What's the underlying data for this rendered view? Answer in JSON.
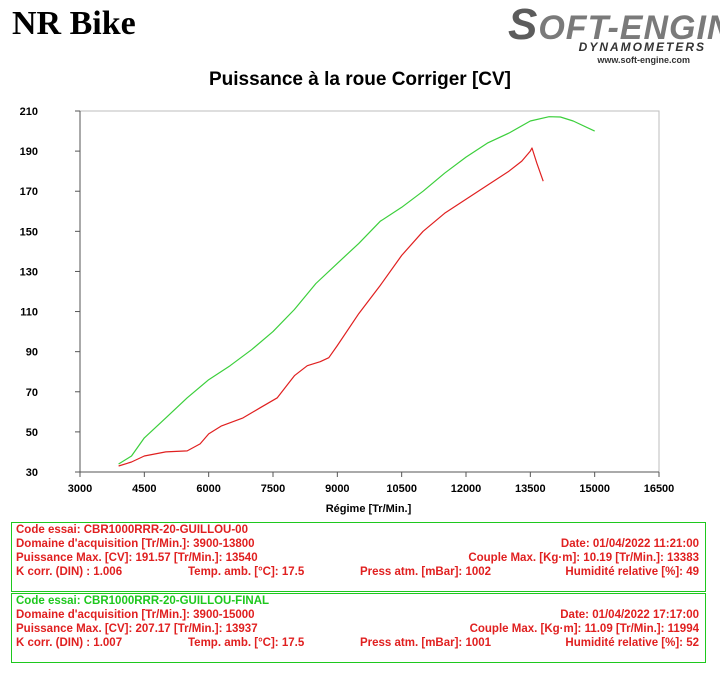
{
  "header": {
    "title": "NR Bike",
    "logo_main": "OFT-ENGINE",
    "logo_initial": "S",
    "logo_sub": "DYNAMOMETERS",
    "logo_url": "www.soft-engine.com"
  },
  "chart_data": {
    "type": "line",
    "title": "Puissance à la roue Corriger [CV]",
    "xlabel": "Régime [Tr/Min.]",
    "ylabel": "",
    "xlim": [
      3000,
      16500
    ],
    "ylim": [
      30,
      210
    ],
    "x_ticks": [
      3000,
      4500,
      6000,
      7500,
      9000,
      10500,
      12000,
      13500,
      15000,
      16500
    ],
    "y_ticks": [
      30,
      50,
      70,
      90,
      110,
      130,
      150,
      170,
      190,
      210
    ],
    "grid": false,
    "series": [
      {
        "color": "#e02020",
        "x": [
          3900,
          4200,
          4500,
          5000,
          5500,
          5800,
          6000,
          6300,
          6800,
          7200,
          7600,
          8000,
          8300,
          8600,
          8800,
          9000,
          9500,
          10000,
          10500,
          11000,
          11500,
          12000,
          12500,
          13000,
          13300,
          13500,
          13540,
          13650,
          13800
        ],
        "y": [
          33,
          35,
          38,
          40,
          40.5,
          44,
          49,
          53,
          57,
          62,
          67,
          78,
          83,
          85,
          87,
          93,
          109,
          123,
          138,
          150,
          159,
          166,
          173,
          180,
          185,
          190,
          191.57,
          184,
          175
        ]
      },
      {
        "color": "#3ccf3c",
        "x": [
          3900,
          4200,
          4500,
          5000,
          5500,
          6000,
          6500,
          7000,
          7500,
          8000,
          8500,
          9000,
          9500,
          10000,
          10500,
          11000,
          11500,
          12000,
          12500,
          13000,
          13500,
          13937,
          14200,
          14500,
          15000
        ],
        "y": [
          34,
          38,
          47,
          57,
          67,
          76,
          83,
          91,
          100,
          111,
          124,
          134,
          144,
          155,
          162,
          170,
          179,
          187,
          194,
          199,
          205,
          207.17,
          207,
          205,
          200
        ]
      }
    ]
  },
  "runs": [
    {
      "code": "Code essai: CBR1000RRR-20-GUILLOU-00",
      "domaine": "Domaine d'acquisition [Tr/Min.]: 3900-13800",
      "date": "Date: 01/04/2022   11:21:00",
      "puissance": "Puissance Max. [CV]: 191.57   [Tr/Min.]: 13540",
      "couple": "Couple Max. [Kg·m]: 10.19   [Tr/Min.]: 13383",
      "kcorr": "K corr. (DIN) : 1.006",
      "temp": "Temp. amb. [°C]: 17.5",
      "press": "Press atm. [mBar]: 1002",
      "humid": "Humidité relative [%]: 49"
    },
    {
      "code": "Code essai: CBR1000RRR-20-GUILLOU-FINAL",
      "domaine": "Domaine d'acquisition [Tr/Min.]: 3900-15000",
      "date": "Date: 01/04/2022   17:17:00",
      "puissance": "Puissance Max. [CV]: 207.17   [Tr/Min.]: 13937",
      "couple": "Couple Max. [Kg·m]: 11.09   [Tr/Min.]: 11994",
      "kcorr": "K corr. (DIN) : 1.007",
      "temp": "Temp. amb. [°C]: 17.5",
      "press": "Press atm. [mBar]: 1001",
      "humid": "Humidité relative [%]: 52"
    }
  ]
}
